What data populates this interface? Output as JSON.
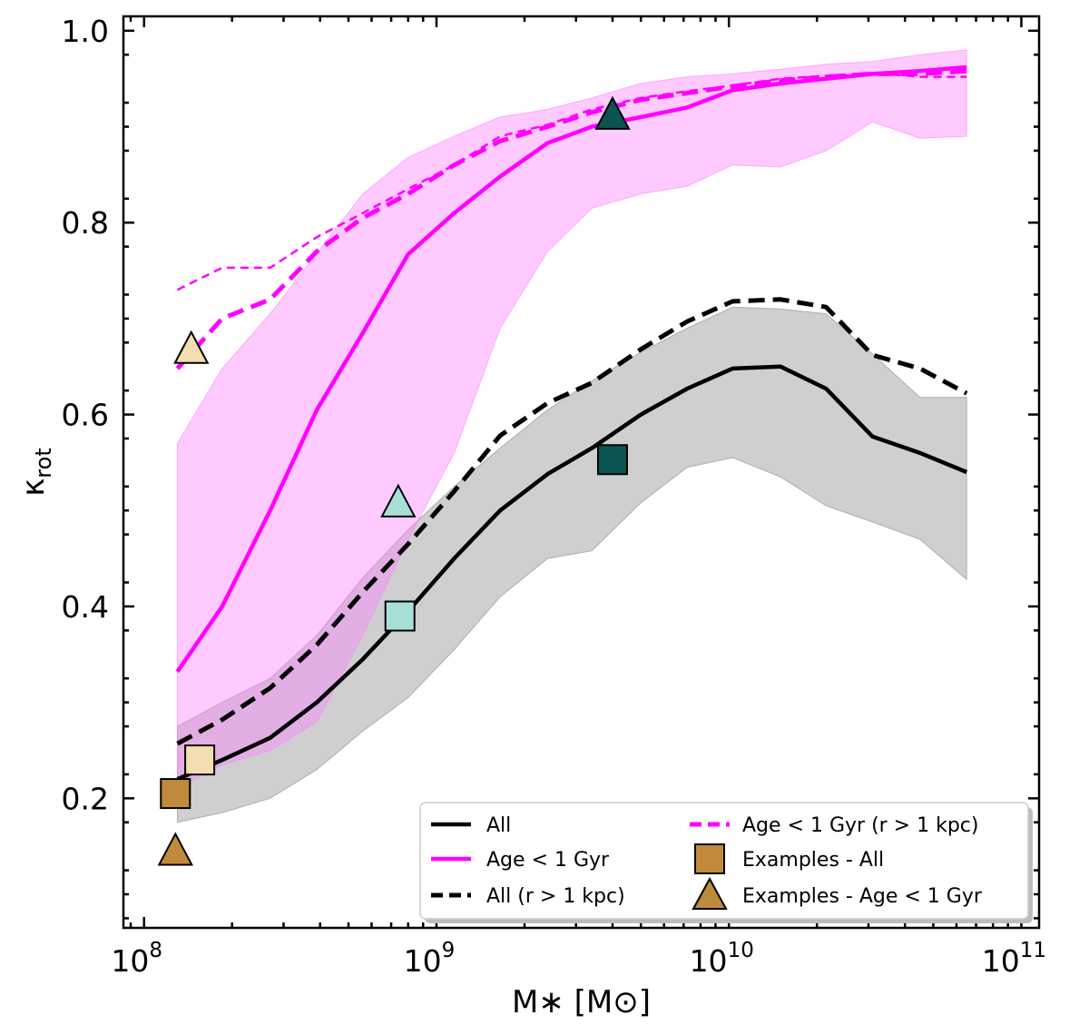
{
  "chart_data": {
    "type": "line",
    "xscale": "log",
    "xlim": [
      85000000,
      115000000000
    ],
    "ylim": [
      0.065,
      1.015
    ],
    "xlabel": "M∗ [M⊙]",
    "ylabel": "κ",
    "ylabel_sub": "rot",
    "x_ticks": [
      {
        "value": 100000000,
        "base": "10",
        "exp": "8"
      },
      {
        "value": 1000000000,
        "base": "10",
        "exp": "9"
      },
      {
        "value": 10000000000,
        "base": "10",
        "exp": "10"
      },
      {
        "value": 100000000000,
        "base": "10",
        "exp": "11"
      }
    ],
    "y_ticks": [
      {
        "value": 0.2,
        "label": "0.2"
      },
      {
        "value": 0.4,
        "label": "0.4"
      },
      {
        "value": 0.6,
        "label": "0.6"
      },
      {
        "value": 0.8,
        "label": "0.8"
      },
      {
        "value": 1.0,
        "label": "1.0"
      }
    ],
    "colors": {
      "all": "#000000",
      "young": "#ff00ff",
      "band_all": "#8c8c8c",
      "band_young": "#ff80ff",
      "marker_edge": "#000000"
    },
    "bands": [
      {
        "name": "all-16-84",
        "color": "#8c8c8c",
        "x": [
          130000000,
          185000000,
          270000000,
          390000000,
          560000000,
          800000000,
          1150000000,
          1650000000,
          2400000000,
          3400000000,
          5000000000,
          7200000000,
          10300000000,
          15000000000,
          21500000000,
          31000000000,
          45000000000,
          65000000000
        ],
        "lower": [
          0.175,
          0.185,
          0.2,
          0.23,
          0.27,
          0.305,
          0.355,
          0.41,
          0.45,
          0.458,
          0.508,
          0.545,
          0.555,
          0.535,
          0.505,
          0.488,
          0.47,
          0.428
        ],
        "upper": [
          0.275,
          0.3,
          0.325,
          0.37,
          0.43,
          0.48,
          0.525,
          0.565,
          0.605,
          0.635,
          0.665,
          0.69,
          0.712,
          0.71,
          0.705,
          0.663,
          0.618,
          0.618
        ]
      },
      {
        "name": "young-16-84",
        "color": "#ff80ff",
        "x": [
          130000000,
          185000000,
          270000000,
          390000000,
          560000000,
          800000000,
          1150000000,
          1650000000,
          2400000000,
          3400000000,
          5000000000,
          7200000000,
          10300000000,
          15000000000,
          21500000000,
          31000000000,
          45000000000,
          65000000000
        ],
        "lower": [
          0.21,
          0.235,
          0.25,
          0.28,
          0.37,
          0.47,
          0.56,
          0.69,
          0.77,
          0.815,
          0.83,
          0.838,
          0.86,
          0.858,
          0.875,
          0.905,
          0.888,
          0.89
        ],
        "upper": [
          0.57,
          0.648,
          0.705,
          0.768,
          0.83,
          0.868,
          0.89,
          0.91,
          0.918,
          0.93,
          0.945,
          0.952,
          0.955,
          0.96,
          0.965,
          0.968,
          0.975,
          0.98
        ]
      }
    ],
    "series": [
      {
        "name": "All",
        "style": "solid",
        "color": "#000000",
        "x": [
          130000000,
          185000000,
          270000000,
          390000000,
          560000000,
          800000000,
          1150000000,
          1650000000,
          2400000000,
          3400000000,
          5000000000,
          7200000000,
          10300000000,
          15000000000,
          21500000000,
          31000000000,
          45000000000,
          65000000000
        ],
        "y": [
          0.22,
          0.24,
          0.263,
          0.3,
          0.345,
          0.395,
          0.45,
          0.5,
          0.538,
          0.565,
          0.6,
          0.627,
          0.648,
          0.65,
          0.627,
          0.577,
          0.56,
          0.54
        ]
      },
      {
        "name": "Age < 1 Gyr",
        "style": "solid",
        "color": "#ff00ff",
        "x": [
          130000000,
          185000000,
          270000000,
          390000000,
          560000000,
          800000000,
          1150000000,
          1650000000,
          2400000000,
          3400000000,
          5000000000,
          7200000000,
          10300000000,
          15000000000,
          21500000000,
          31000000000,
          45000000000,
          65000000000
        ],
        "y": [
          0.332,
          0.4,
          0.5,
          0.605,
          0.685,
          0.767,
          0.81,
          0.848,
          0.883,
          0.9,
          0.91,
          0.92,
          0.938,
          0.945,
          0.95,
          0.955,
          0.958,
          0.962
        ]
      },
      {
        "name": "All (r > 1 kpc)",
        "style": "dashed",
        "color": "#000000",
        "x": [
          130000000,
          185000000,
          270000000,
          390000000,
          560000000,
          800000000,
          1150000000,
          1650000000,
          2400000000,
          3400000000,
          5000000000,
          7200000000,
          10300000000,
          15000000000,
          21500000000,
          31000000000,
          45000000000,
          65000000000
        ],
        "y": [
          0.257,
          0.282,
          0.315,
          0.36,
          0.415,
          0.465,
          0.52,
          0.578,
          0.612,
          0.633,
          0.668,
          0.697,
          0.718,
          0.72,
          0.712,
          0.662,
          0.648,
          0.622
        ]
      },
      {
        "name": "Age < 1 Gyr (r > 1 kpc)",
        "style": "dashed",
        "color": "#ff00ff",
        "x": [
          130000000,
          185000000,
          270000000,
          390000000,
          560000000,
          800000000,
          1150000000,
          1650000000,
          2400000000,
          3400000000,
          5000000000,
          7200000000,
          10300000000,
          15000000000,
          21500000000,
          31000000000,
          45000000000,
          65000000000
        ],
        "y": [
          0.648,
          0.7,
          0.72,
          0.77,
          0.805,
          0.83,
          0.86,
          0.885,
          0.9,
          0.915,
          0.928,
          0.935,
          0.942,
          0.948,
          0.952,
          0.955,
          0.955,
          0.958
        ]
      },
      {
        "name": "Age < 1 Gyr (r > 1 kpc), thin",
        "style": "thin-dashed",
        "color": "#ff00ff",
        "x": [
          130000000,
          185000000,
          270000000,
          390000000,
          560000000,
          800000000,
          1150000000,
          1650000000,
          2400000000,
          3400000000,
          5000000000,
          7200000000,
          10300000000,
          15000000000,
          21500000000,
          31000000000,
          45000000000,
          65000000000
        ],
        "y": [
          0.73,
          0.753,
          0.753,
          0.785,
          0.81,
          0.835,
          0.86,
          0.89,
          0.902,
          0.918,
          0.93,
          0.937,
          0.943,
          0.95,
          0.953,
          0.956,
          0.952,
          0.952
        ]
      }
    ],
    "markers": [
      {
        "shape": "square",
        "x": 128000000,
        "y": 0.205,
        "color": "#c08a3c"
      },
      {
        "shape": "square",
        "x": 155000000,
        "y": 0.24,
        "color": "#f2deb0"
      },
      {
        "shape": "square",
        "x": 750000000,
        "y": 0.39,
        "color": "#a8e0d8"
      },
      {
        "shape": "square",
        "x": 4000000000,
        "y": 0.553,
        "color": "#0b5550"
      },
      {
        "shape": "triangle",
        "x": 128000000,
        "y": 0.145,
        "color": "#c08a3c"
      },
      {
        "shape": "triangle",
        "x": 145000000,
        "y": 0.668,
        "color": "#f2deb0"
      },
      {
        "shape": "triangle",
        "x": 740000000,
        "y": 0.508,
        "color": "#a8e0d8"
      },
      {
        "shape": "triangle",
        "x": 4000000000,
        "y": 0.912,
        "color": "#0b5550"
      }
    ],
    "legend": {
      "position": "lower-right",
      "entries": [
        {
          "key": "line-black-solid",
          "label": "All"
        },
        {
          "key": "line-magenta-solid",
          "label": "Age < 1 Gyr"
        },
        {
          "key": "line-black-dashed",
          "label": "All (r > 1 kpc)"
        },
        {
          "key": "line-magenta-dashed",
          "label": "Age < 1 Gyr (r > 1 kpc)"
        },
        {
          "key": "square",
          "label": "Examples - All"
        },
        {
          "key": "triangle",
          "label": "Examples - Age < 1 Gyr"
        }
      ],
      "marker_color": "#c08a3c"
    }
  }
}
